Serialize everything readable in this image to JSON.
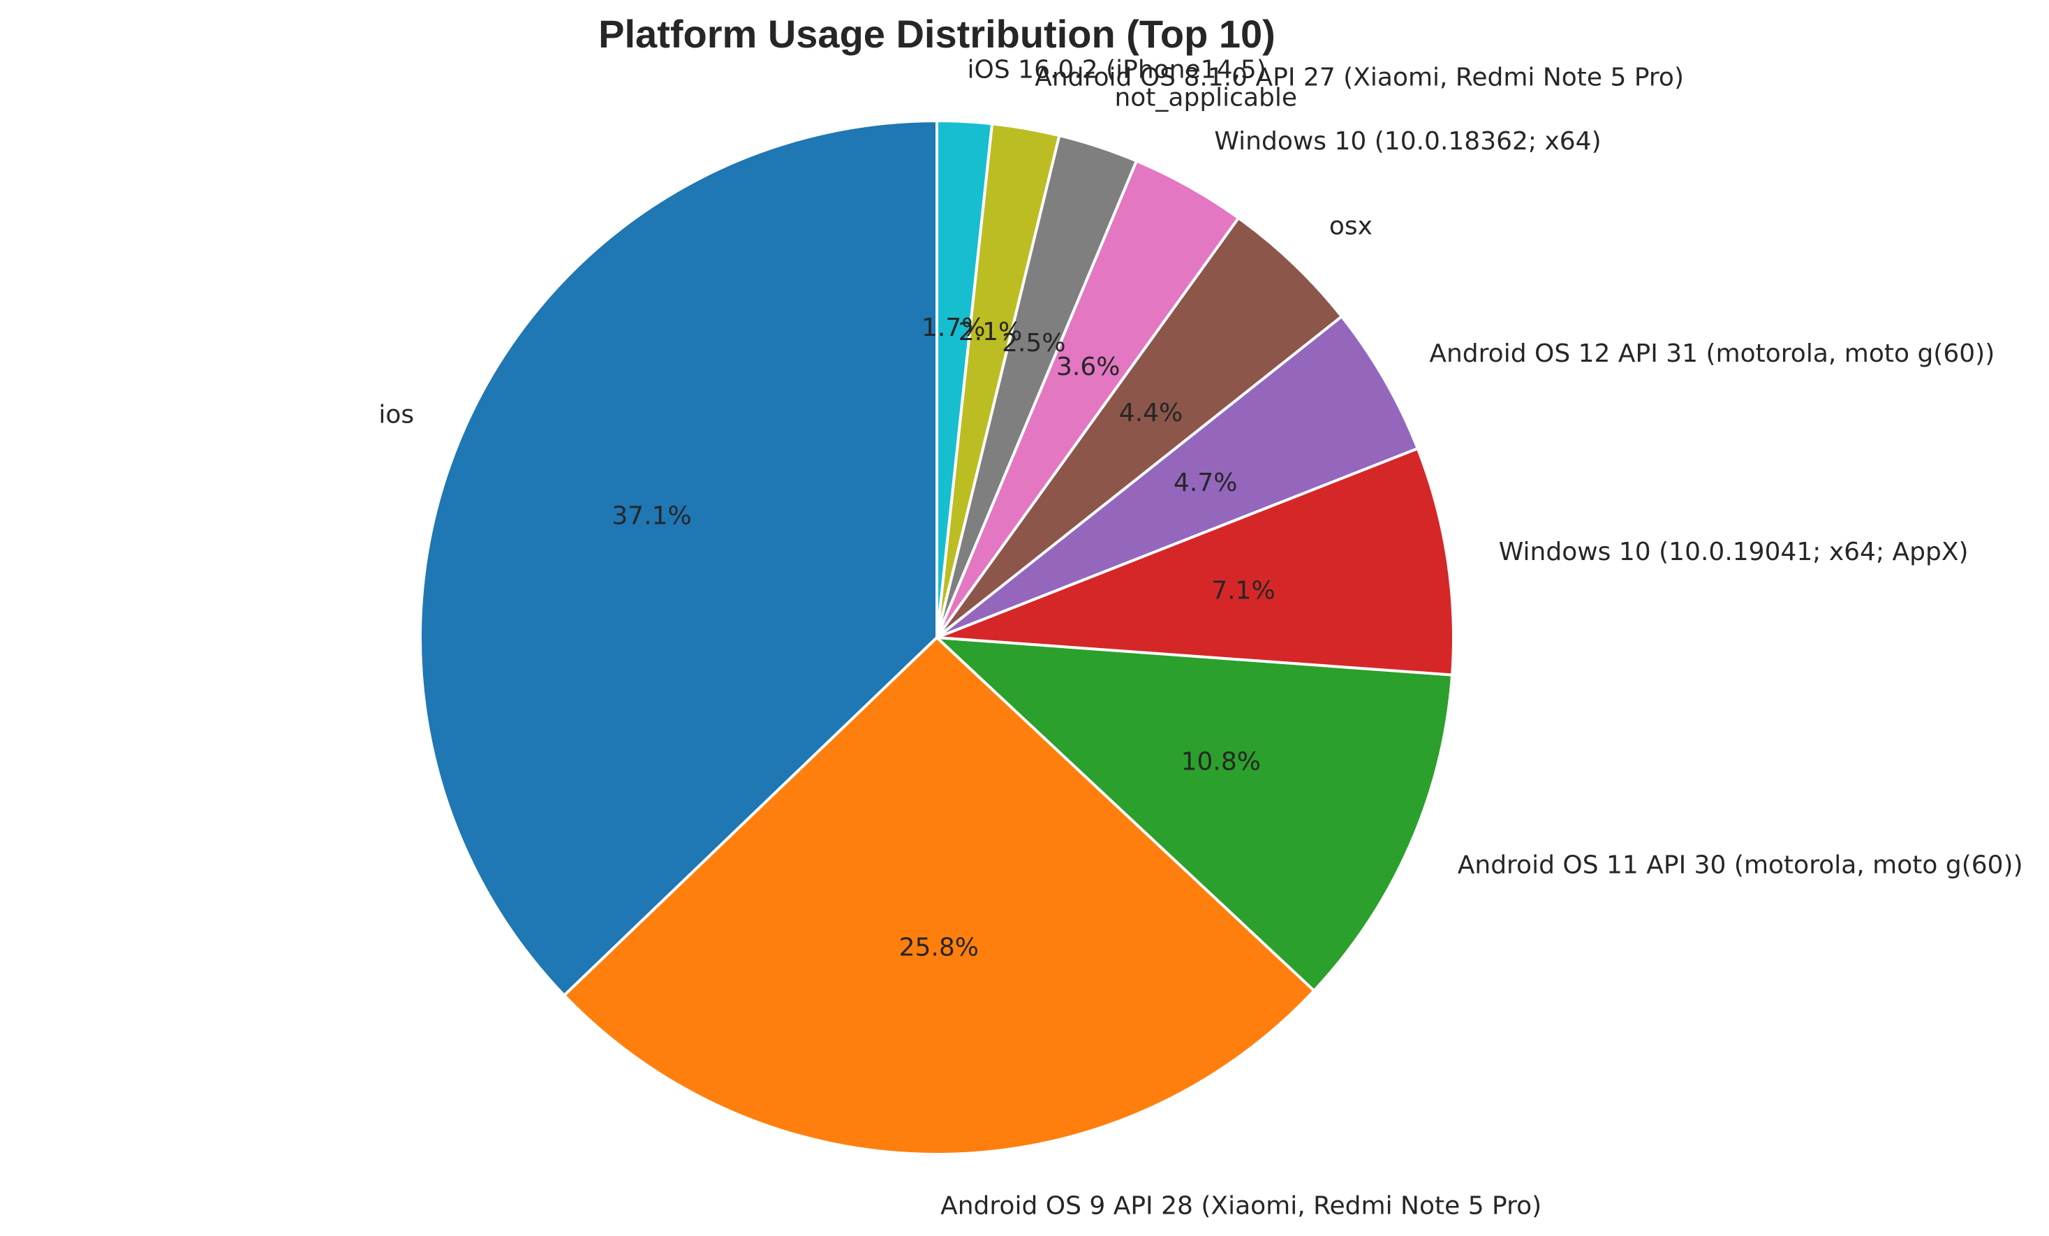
{
  "chart_data": {
    "type": "pie",
    "title": "Platform Usage Distribution (Top 10)",
    "start_angle_deg": 90,
    "direction": "counterclockwise",
    "slices": [
      {
        "label": "ios",
        "pct_label": "37.1%",
        "value": 37.1,
        "color": "#1f77b4"
      },
      {
        "label": "Android OS 9 API 28 (Xiaomi, Redmi Note 5 Pro)",
        "pct_label": "25.8%",
        "value": 25.8,
        "color": "#ff7f0e"
      },
      {
        "label": "Android OS 11 API 30 (motorola, moto g(60))",
        "pct_label": "10.8%",
        "value": 10.8,
        "color": "#2ca02c"
      },
      {
        "label": "Windows 10 (10.0.19041; x64; AppX)",
        "pct_label": "7.1%",
        "value": 7.1,
        "color": "#d62728"
      },
      {
        "label": "Android OS 12 API 31 (motorola, moto g(60))",
        "pct_label": "4.7%",
        "value": 4.7,
        "color": "#9467bd"
      },
      {
        "label": "osx",
        "pct_label": "4.4%",
        "value": 4.4,
        "color": "#8c564b"
      },
      {
        "label": "Windows 10 (10.0.18362; x64)",
        "pct_label": "3.6%",
        "value": 3.6,
        "color": "#e377c2"
      },
      {
        "label": "not_applicable",
        "pct_label": "2.5%",
        "value": 2.5,
        "color": "#7f7f7f"
      },
      {
        "label": "Android OS 8.1.0 API 27 (Xiaomi, Redmi Note 5 Pro)",
        "pct_label": "2.1%",
        "value": 2.1,
        "color": "#bcbd22"
      },
      {
        "label": "iOS 16.0.2 (iPhone14,5)",
        "pct_label": "1.7%",
        "value": 1.7,
        "color": "#17becf"
      }
    ]
  }
}
